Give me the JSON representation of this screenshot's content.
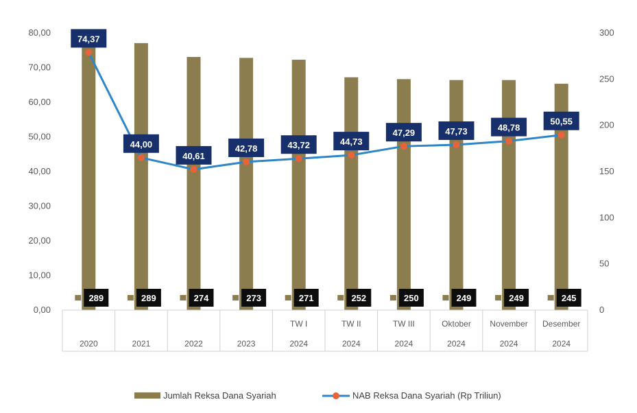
{
  "chart_data": {
    "type": "bar",
    "categories": [
      {
        "top": "",
        "bottom": "2020"
      },
      {
        "top": "",
        "bottom": "2021"
      },
      {
        "top": "",
        "bottom": "2022"
      },
      {
        "top": "",
        "bottom": "2023"
      },
      {
        "top": "TW I",
        "bottom": "2024"
      },
      {
        "top": "TW II",
        "bottom": "2024"
      },
      {
        "top": "TW III",
        "bottom": "2024"
      },
      {
        "top": "Oktober",
        "bottom": "2024"
      },
      {
        "top": "November",
        "bottom": "2024"
      },
      {
        "top": "Desember",
        "bottom": "2024"
      }
    ],
    "series": [
      {
        "name": "Jumlah Reksa Dana Syariah",
        "type": "bar",
        "axis": "right",
        "values": [
          289,
          289,
          274,
          273,
          271,
          252,
          250,
          249,
          249,
          245
        ],
        "labels": [
          "289",
          "289",
          "274",
          "273",
          "271",
          "252",
          "250",
          "249",
          "249",
          "245"
        ],
        "color": "#8b7d4e"
      },
      {
        "name": "NAB Reksa Dana Syariah (Rp Triliun)",
        "type": "line",
        "axis": "left",
        "values": [
          74.37,
          44.0,
          40.61,
          42.78,
          43.72,
          44.73,
          47.29,
          47.73,
          48.78,
          50.55
        ],
        "labels": [
          "74,37",
          "44,00",
          "40,61",
          "42,78",
          "43,72",
          "44,73",
          "47,29",
          "47,73",
          "48,78",
          "50,55"
        ],
        "color": "#2e86c9",
        "marker_color": "#e8623a"
      }
    ],
    "left_axis": {
      "range": [
        0,
        80
      ],
      "ticks": [
        0,
        10,
        20,
        30,
        40,
        50,
        60,
        70,
        80
      ],
      "tick_labels": [
        "0,00",
        "10,00",
        "20,00",
        "30,00",
        "40,00",
        "50,00",
        "60,00",
        "70,00",
        "80,00"
      ]
    },
    "right_axis": {
      "range": [
        0,
        300
      ],
      "ticks": [
        0,
        50,
        100,
        150,
        200,
        250,
        300
      ],
      "tick_labels": [
        "0",
        "50",
        "100",
        "150",
        "200",
        "250",
        "300"
      ]
    },
    "legend_position": "bottom",
    "grid": false,
    "line_label_bg": "#17306b",
    "bar_label_bg": "#0d0d0d"
  }
}
